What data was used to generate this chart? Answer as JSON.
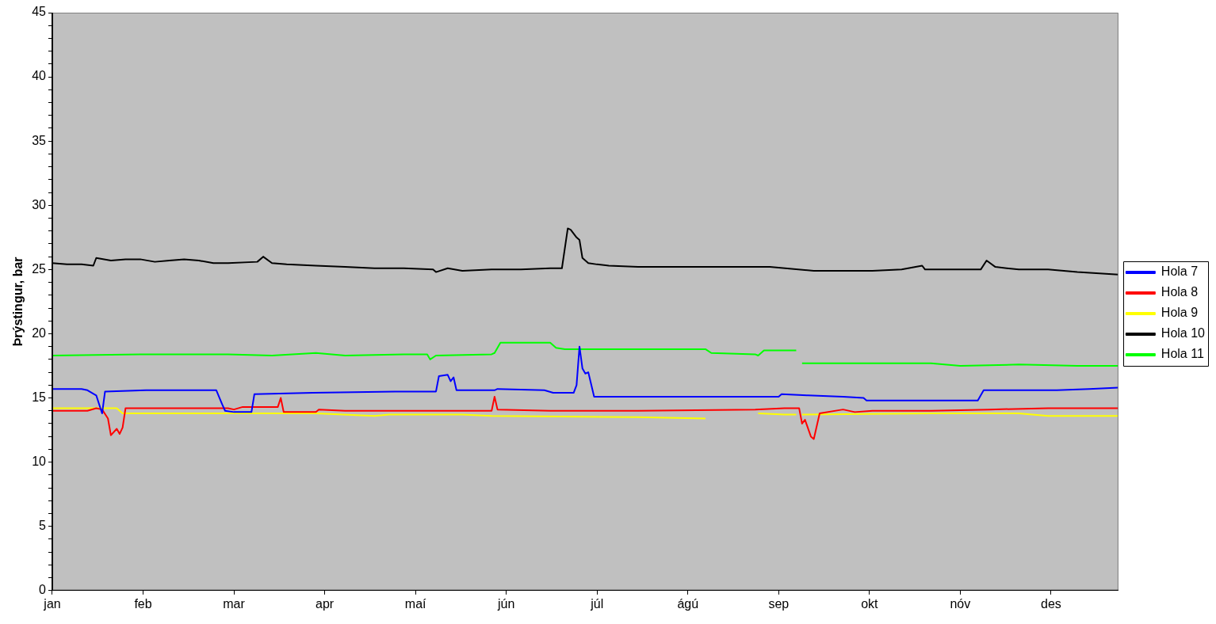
{
  "chart_data": {
    "type": "line",
    "ylabel": "Þrýstingur, bar",
    "xlim": [
      "--01-01",
      "--12-31"
    ],
    "ylim": [
      0,
      45
    ],
    "xticks": [
      {
        "value": "--01-01",
        "label": "jan"
      },
      {
        "value": "--02-01",
        "label": "feb"
      },
      {
        "value": "--03-04",
        "label": "mar"
      },
      {
        "value": "--04-04",
        "label": "apr"
      },
      {
        "value": "--05-05",
        "label": "maí"
      },
      {
        "value": "--06-05",
        "label": "jún"
      },
      {
        "value": "--07-06",
        "label": "júl"
      },
      {
        "value": "--08-06",
        "label": "ágú"
      },
      {
        "value": "--09-06",
        "label": "sep"
      },
      {
        "value": "--10-07",
        "label": "okt"
      },
      {
        "value": "--11-07",
        "label": "nóv"
      },
      {
        "value": "--12-08",
        "label": "des"
      }
    ],
    "yticks": [
      0,
      {
        "value": 1,
        "label": null
      },
      {
        "value": 2,
        "label": null
      },
      {
        "value": 3,
        "label": null
      },
      {
        "value": 4,
        "label": null
      },
      5,
      {
        "value": 6,
        "label": null
      },
      {
        "value": 7,
        "label": null
      },
      {
        "value": 8,
        "label": null
      },
      {
        "value": 9,
        "label": null
      },
      10,
      {
        "value": 11,
        "label": null
      },
      {
        "value": 12,
        "label": null
      },
      {
        "value": 13,
        "label": null
      },
      {
        "value": 14,
        "label": null
      },
      15,
      {
        "value": 16,
        "label": null
      },
      {
        "value": 17,
        "label": null
      },
      {
        "value": 18,
        "label": null
      },
      {
        "value": 19,
        "label": null
      },
      20,
      {
        "value": 21,
        "label": null
      },
      {
        "value": 22,
        "label": null
      },
      {
        "value": 23,
        "label": null
      },
      {
        "value": 24,
        "label": null
      },
      25,
      {
        "value": 26,
        "label": null
      },
      {
        "value": 27,
        "label": null
      },
      {
        "value": 28,
        "label": null
      },
      {
        "value": 29,
        "label": null
      },
      30,
      {
        "value": 31,
        "label": null
      },
      {
        "value": 32,
        "label": null
      },
      {
        "value": 33,
        "label": null
      },
      {
        "value": 34,
        "label": null
      },
      35,
      {
        "value": 36,
        "label": null
      },
      {
        "value": 37,
        "label": null
      },
      {
        "value": 38,
        "label": null
      },
      {
        "value": 39,
        "label": null
      },
      40,
      {
        "value": 41,
        "label": null
      },
      {
        "value": 42,
        "label": null
      },
      {
        "value": 43,
        "label": null
      },
      {
        "value": 44,
        "label": null
      },
      45
    ],
    "grid": false,
    "legend": "right",
    "marker": "none",
    "line_style": "solid",
    "series": [
      {
        "name": "Hola 7",
        "color": "#0000ff",
        "x": [
          "--01-01",
          "--01-11",
          "--01-13",
          "--01-16",
          "--01-18",
          "--01-19",
          "--02-02",
          "--02-26",
          "--02-28",
          "--03-01",
          "--03-04",
          "--03-10",
          "--03-11",
          "--03-31",
          "--04-28",
          "--05-12",
          "--05-13",
          "--05-16",
          "--05-17",
          "--05-18",
          "--05-19",
          "--06-01",
          "--06-02",
          "--06-18",
          "--06-21",
          "--06-28",
          "--06-29",
          "--06-30",
          "--07-01",
          "--07-02",
          "--07-03",
          "--07-05",
          "--07-22",
          "--09-06",
          "--09-07",
          "--09-16",
          "--09-28",
          "--10-05",
          "--10-06",
          "--11-13",
          "--11-15",
          "--12-10",
          "--12-21",
          "--12-31"
        ],
        "values": [
          15.7,
          15.7,
          15.6,
          15.2,
          13.8,
          15.5,
          15.6,
          15.6,
          14.5,
          14.0,
          13.9,
          13.9,
          15.3,
          15.4,
          15.5,
          15.5,
          16.7,
          16.8,
          16.3,
          16.6,
          15.6,
          15.6,
          15.7,
          15.6,
          15.4,
          15.4,
          16.0,
          19.0,
          17.3,
          16.9,
          17.0,
          15.1,
          15.1,
          15.1,
          15.3,
          15.2,
          15.1,
          15.0,
          14.8,
          14.8,
          15.6,
          15.6,
          15.7,
          15.8
        ]
      },
      {
        "name": "Hola 8",
        "color": "#ff0000",
        "x": [
          "--01-01",
          "--01-13",
          "--01-16",
          "--01-18",
          "--01-20",
          "--01-21",
          "--01-23",
          "--01-24",
          "--01-25",
          "--01-26",
          "--03-02",
          "--03-04",
          "--03-07",
          "--03-19",
          "--03-20",
          "--03-21",
          "--04-01",
          "--04-02",
          "--04-11",
          "--05-31",
          "--06-01",
          "--06-02",
          "--06-20",
          "--07-20",
          "--08-29",
          "--09-08",
          "--09-13",
          "--09-14",
          "--09-15",
          "--09-17",
          "--09-18",
          "--09-20",
          "--09-28",
          "--10-02",
          "--10-08",
          "--10-28",
          "--11-17",
          "--12-07",
          "--12-31"
        ],
        "values": [
          14.0,
          14.0,
          14.2,
          14.1,
          13.4,
          12.1,
          12.6,
          12.2,
          12.7,
          14.2,
          14.2,
          14.1,
          14.3,
          14.3,
          15.0,
          13.9,
          13.9,
          14.1,
          14.0,
          14.0,
          15.1,
          14.1,
          14.0,
          14.0,
          14.1,
          14.2,
          14.2,
          13.0,
          13.3,
          12.0,
          11.8,
          13.8,
          14.1,
          13.9,
          14.0,
          14.0,
          14.1,
          14.2,
          14.2
        ]
      },
      {
        "name": "Hola 9",
        "color": "#ffff00",
        "x": [
          "--01-01",
          "--01-23",
          "--01-25",
          "--03-02",
          "--04-01",
          "--04-21",
          "--04-26",
          "--05-21",
          "--05-31",
          "--07-20",
          "--08-12",
          "--08-13",
          "--08-30",
          "--09-08",
          "--09-12",
          "--09-13",
          "--09-14",
          "--10-28",
          "--11-27",
          "--12-07",
          "--12-31"
        ],
        "values": [
          14.2,
          14.2,
          13.8,
          13.8,
          13.8,
          13.6,
          13.7,
          13.7,
          13.6,
          13.5,
          13.4,
          null,
          13.8,
          13.7,
          13.7,
          null,
          13.7,
          13.8,
          13.8,
          13.6,
          13.6
        ]
      },
      {
        "name": "Hola 10",
        "color": "#000000",
        "x": [
          "--01-01",
          "--01-06",
          "--01-11",
          "--01-15",
          "--01-16",
          "--01-21",
          "--01-26",
          "--01-31",
          "--02-05",
          "--02-10",
          "--02-15",
          "--02-20",
          "--02-25",
          "--03-02",
          "--03-12",
          "--03-14",
          "--03-17",
          "--03-22",
          "--04-01",
          "--04-11",
          "--04-21",
          "--05-01",
          "--05-11",
          "--05-12",
          "--05-16",
          "--05-21",
          "--05-31",
          "--06-10",
          "--06-20",
          "--06-24",
          "--06-26",
          "--06-27",
          "--06-29",
          "--06-30",
          "--07-01",
          "--07-03",
          "--07-06",
          "--07-10",
          "--07-20",
          "--08-09",
          "--09-03",
          "--09-18",
          "--10-08",
          "--10-18",
          "--10-25",
          "--10-26",
          "--10-28",
          "--11-14",
          "--11-16",
          "--11-19",
          "--11-27",
          "--12-07",
          "--12-17",
          "--12-31"
        ],
        "values": [
          25.5,
          25.4,
          25.4,
          25.3,
          25.9,
          25.7,
          25.8,
          25.8,
          25.6,
          25.7,
          25.8,
          25.7,
          25.5,
          25.5,
          25.6,
          26.0,
          25.5,
          25.4,
          25.3,
          25.2,
          25.1,
          25.1,
          25.0,
          24.8,
          25.1,
          24.9,
          25.0,
          25.0,
          25.1,
          25.1,
          28.2,
          28.1,
          27.5,
          27.3,
          25.9,
          25.5,
          25.4,
          25.3,
          25.2,
          25.2,
          25.2,
          24.9,
          24.9,
          25.0,
          25.3,
          25.0,
          25.0,
          25.0,
          25.7,
          25.2,
          25.0,
          25.0,
          24.8,
          24.6
        ]
      },
      {
        "name": "Hola 11",
        "color": "#00ff00",
        "x": [
          "--01-01",
          "--01-31",
          "--03-02",
          "--03-17",
          "--04-01",
          "--04-11",
          "--05-01",
          "--05-09",
          "--05-10",
          "--05-12",
          "--05-31",
          "--06-01",
          "--06-03",
          "--06-20",
          "--06-22",
          "--06-25",
          "--07-20",
          "--08-12",
          "--08-14",
          "--08-29",
          "--08-30",
          "--09-01",
          "--09-12",
          "--09-13",
          "--09-14",
          "--10-18",
          "--10-28",
          "--11-07",
          "--11-27",
          "--12-17",
          "--12-31"
        ],
        "values": [
          18.3,
          18.4,
          18.4,
          18.3,
          18.5,
          18.3,
          18.4,
          18.4,
          18.0,
          18.3,
          18.4,
          18.5,
          19.3,
          19.3,
          18.9,
          18.8,
          18.8,
          18.8,
          18.5,
          18.4,
          18.3,
          18.7,
          18.7,
          null,
          17.7,
          17.7,
          17.7,
          17.5,
          17.6,
          17.5,
          17.5
        ]
      }
    ]
  }
}
